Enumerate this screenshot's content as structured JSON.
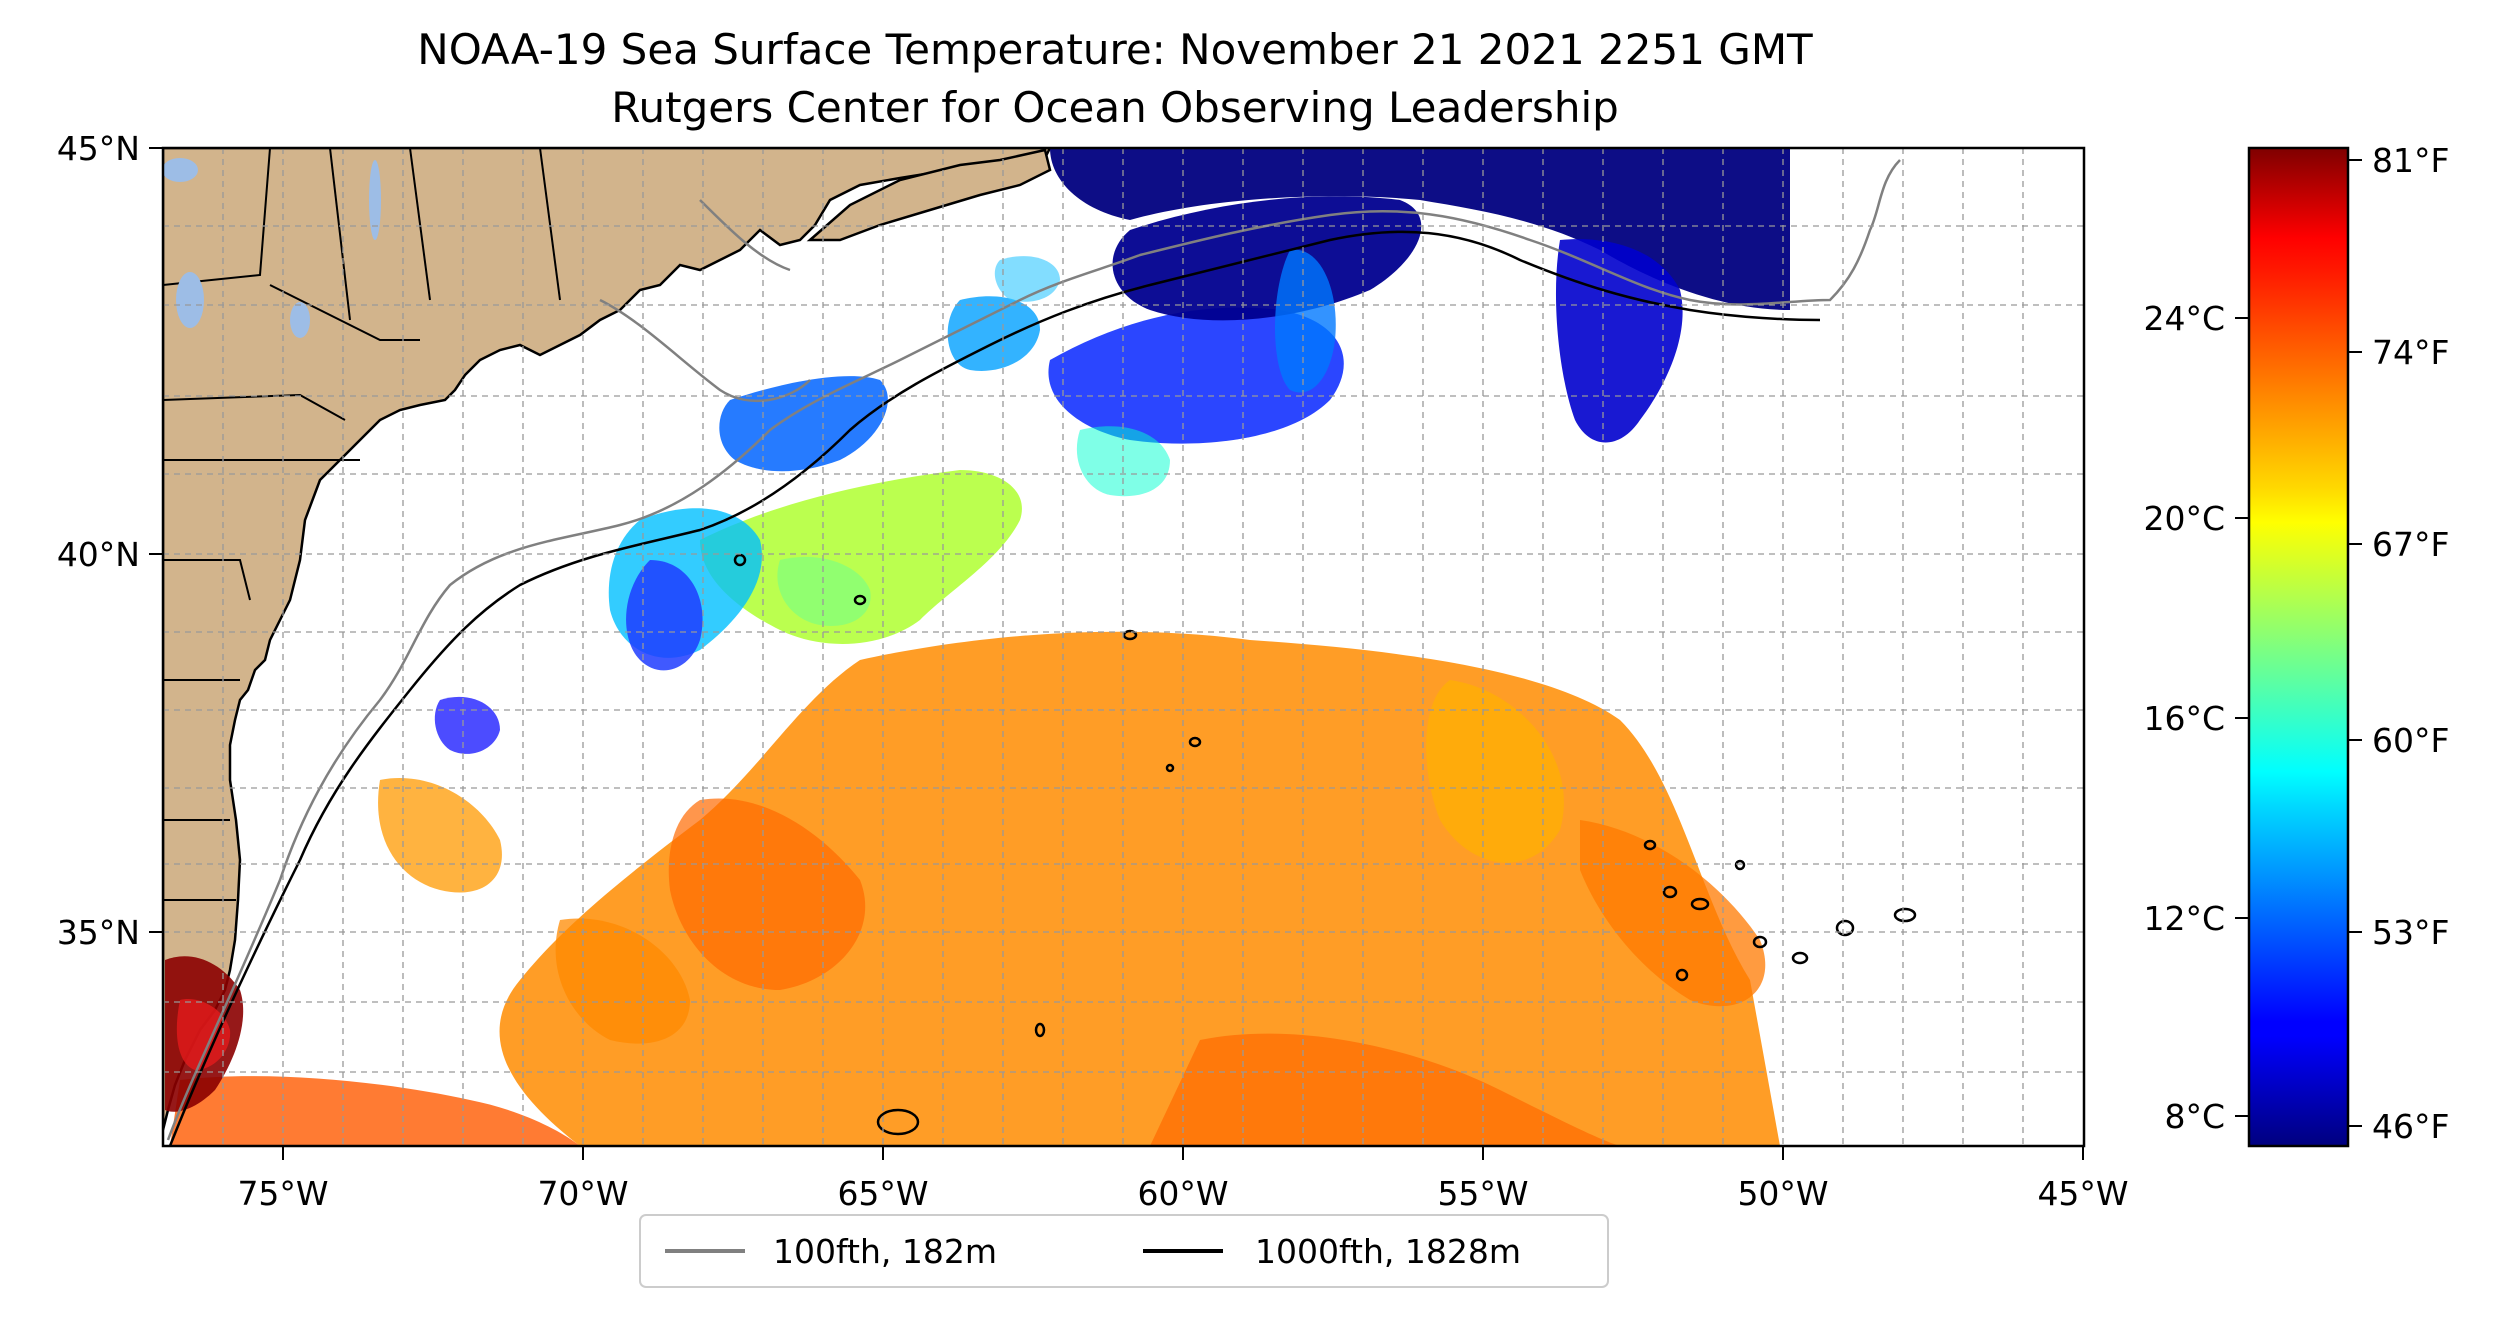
{
  "title": {
    "line1": "NOAA-19 Sea Surface Temperature: November 21 2021 2251 GMT",
    "line2": "Rutgers Center for Ocean Observing Leadership"
  },
  "map": {
    "lon_range": [
      -77,
      -45
    ],
    "lat_range": [
      32.5,
      45
    ],
    "lon_ticks": [
      "75°W",
      "70°W",
      "65°W",
      "60°W",
      "55°W",
      "50°W",
      "45°W"
    ],
    "lat_ticks": [
      "35°N",
      "40°N",
      "45°N"
    ],
    "land_color": "#d2b48c",
    "water_color": "#9dbde6",
    "grid": true
  },
  "legend": {
    "placement": "bottom-center",
    "items": [
      {
        "label": "100fth, 182m",
        "color": "#808080"
      },
      {
        "label": "1000fth, 1828m",
        "color": "#000000"
      }
    ]
  },
  "colorbar": {
    "colormap": "jet",
    "celsius_ticks": [
      "24°C",
      "20°C",
      "16°C",
      "12°C",
      "8°C"
    ],
    "fahrenheit_ticks": [
      "81°F",
      "74°F",
      "67°F",
      "60°F",
      "53°F",
      "46°F"
    ]
  }
}
